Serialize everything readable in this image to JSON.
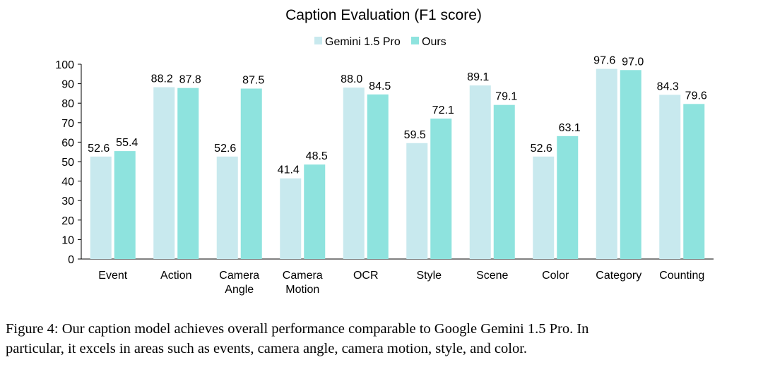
{
  "chart_data": {
    "type": "bar",
    "title": "Caption Evaluation (F1 score)",
    "categories": [
      [
        "Event"
      ],
      [
        "Action"
      ],
      [
        "Camera",
        "Angle"
      ],
      [
        "Camera",
        "Motion"
      ],
      [
        "OCR"
      ],
      [
        "Style"
      ],
      [
        "Scene"
      ],
      [
        "Color"
      ],
      [
        "Category"
      ],
      [
        "Counting"
      ]
    ],
    "series": [
      {
        "name": "Gemini 1.5 Pro",
        "color": "#c8e9ee",
        "values": [
          52.6,
          88.2,
          52.6,
          41.4,
          88.0,
          59.5,
          89.1,
          52.6,
          97.6,
          84.3
        ],
        "labels": [
          "52.6",
          "88.2",
          "52.6",
          "41.4",
          "88.0",
          "59.5",
          "89.1",
          "52.6",
          "97.6",
          "84.3"
        ]
      },
      {
        "name": "Ours",
        "color": "#8ee3de",
        "values": [
          55.4,
          87.8,
          87.5,
          48.5,
          84.5,
          72.1,
          79.1,
          63.1,
          97.0,
          79.6
        ],
        "labels": [
          "55.4",
          "87.8",
          "87.5",
          "48.5",
          "84.5",
          "72.1",
          "79.1",
          "63.1",
          "97.0",
          "79.6"
        ]
      }
    ],
    "ylim": [
      0,
      100
    ],
    "yticks": [
      0,
      10,
      20,
      30,
      40,
      50,
      60,
      70,
      80,
      90,
      100
    ],
    "grid": false,
    "legend_position": "top-center"
  },
  "caption": {
    "line1": "Figure 4: Our caption model achieves overall performance comparable to Google Gemini 1.5 Pro. In",
    "line2": "particular, it excels in areas such as events, camera angle, camera motion, style, and color."
  }
}
